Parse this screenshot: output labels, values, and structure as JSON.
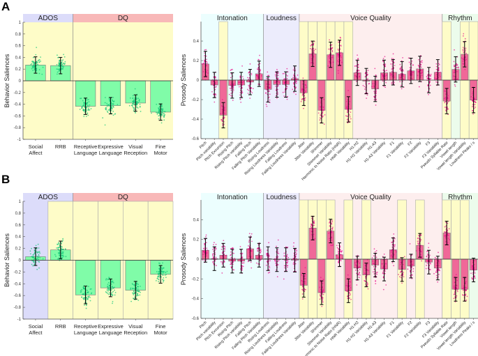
{
  "panel_labels": [
    "A",
    "B"
  ],
  "colors": {
    "behavior_bar": "#80fca8",
    "behavior_points": "#10c878",
    "prosody_bar": "#f06898",
    "prosody_points": "#e8108a",
    "highlight": "#fefcc8",
    "ados": "#dcdcfa",
    "dq": "#f8b8b8",
    "intonation": "#ecfefe",
    "loudness": "#ececfc",
    "voice_quality": "#fdeeee",
    "rhythm": "#ecfcec"
  },
  "chart_data": [
    {
      "panel": "A",
      "type": "bar",
      "ylabel": "Behavior Saliences",
      "ylim": [
        -1,
        1
      ],
      "yticks": [
        "1",
        "0.8",
        "0.6",
        "0.4",
        "0.2",
        "0",
        "-0.2",
        "-0.4",
        "-0.6",
        "-0.8",
        "-1"
      ],
      "categories": [
        [
          "Social",
          "Affect"
        ],
        [
          "RRB"
        ],
        [
          "Receptive",
          "Language"
        ],
        [
          "Expressive",
          "Language"
        ],
        [
          "Visual",
          "Reception"
        ],
        [
          "Fine",
          "Motor"
        ]
      ],
      "values": [
        0.27,
        0.26,
        -0.435,
        -0.425,
        -0.38,
        -0.535
      ],
      "error_halfwidth": 0.14,
      "groups": [
        {
          "name": "ADOS",
          "start": 0,
          "end": 1,
          "color": "#dcdcfa",
          "bg": "#fefcc8"
        },
        {
          "name": "DQ",
          "start": 2,
          "end": 5,
          "color": "#f8b8b8",
          "bg": "#fefcc8"
        }
      ],
      "highlighted": [
        0,
        1,
        2,
        3,
        4,
        5
      ]
    },
    {
      "panel": "A",
      "type": "bar",
      "ylabel": "Prosody Saliences",
      "ylim": [
        -0.6,
        0.6
      ],
      "yticks": [
        "0.4",
        "0.2",
        "0",
        "-0.2",
        "-0.4",
        "-0.6"
      ],
      "categories": [
        "Pitch",
        "Pitch variability",
        "Pitch Excursion",
        "Rising Pitch",
        "Rising Pitch variability",
        "Falling Pitch",
        "Falling Pitch Variability",
        "Rising Loudness",
        "Rising Loudness Variability",
        "Falling Loudness",
        "Falling Loudness Variability",
        "Jitter",
        "Jitter Variability",
        "Shimmer",
        "Shimmer Variability",
        "Harmonic to Noise Ratio (HNR)",
        "HNR Variability",
        "H1-H2",
        "H1-H2 Variability",
        "H1-A3",
        "H1-A3 Variability",
        "F1",
        "F1 Variability",
        "F2",
        "F2 Variability",
        "F3",
        "F3 Variability",
        "Pseudo Syllable Rate",
        "Vowel length",
        "Vowel length Variability",
        "Loudness Peaks / s"
      ],
      "values": [
        0.165,
        -0.05,
        -0.36,
        -0.055,
        -0.05,
        -0.02,
        0.065,
        -0.095,
        -0.045,
        -0.045,
        0.015,
        -0.13,
        0.27,
        -0.31,
        0.26,
        0.28,
        -0.3,
        0.075,
        -0.01,
        -0.09,
        0.075,
        0.08,
        0.06,
        0.095,
        0.115,
        0.0,
        0.08,
        -0.215,
        0.11,
        0.265,
        -0.205
      ],
      "error_halfwidth": 0.13,
      "groups": [
        {
          "name": "Intonation",
          "start": 0,
          "end": 6,
          "color": "#ecfefe",
          "bg": "#ecfefe"
        },
        {
          "name": "Loudness",
          "start": 7,
          "end": 10,
          "color": "#ececfc",
          "bg": "#ececfc"
        },
        {
          "name": "Voice Quality",
          "start": 11,
          "end": 26,
          "color": "#fdeeee",
          "bg": "#fdeeee"
        },
        {
          "name": "Rhythm",
          "start": 27,
          "end": 30,
          "color": "#ecfcec",
          "bg": "#ecfcec"
        }
      ],
      "highlighted": [
        2,
        11,
        12,
        13,
        14,
        15,
        16,
        27,
        29,
        30
      ]
    },
    {
      "panel": "B",
      "type": "bar",
      "ylabel": "Behavior Saliences",
      "ylim": [
        -1,
        1
      ],
      "yticks": [
        "1",
        "0.8",
        "0.6",
        "0.4",
        "0.2",
        "0",
        "-0.2",
        "-0.4",
        "-0.6",
        "-0.8",
        "-1"
      ],
      "categories": [
        [
          "Social",
          "Affect"
        ],
        [
          "RRB"
        ],
        [
          "Receptive",
          "Language"
        ],
        [
          "Expressive",
          "Language"
        ],
        [
          "Visual",
          "Reception"
        ],
        [
          "Fine",
          "Motor"
        ]
      ],
      "values": [
        0.06,
        0.175,
        -0.59,
        -0.47,
        -0.51,
        -0.24
      ],
      "error_halfwidth": 0.15,
      "groups": [
        {
          "name": "ADOS",
          "start": 0,
          "end": 1,
          "color": "#dcdcfa",
          "bg": "#dcdcfa"
        },
        {
          "name": "DQ",
          "start": 2,
          "end": 5,
          "color": "#f8b8b8",
          "bg": "#fefcc8"
        }
      ],
      "highlighted": [
        1,
        2,
        3,
        4,
        5
      ]
    },
    {
      "panel": "B",
      "type": "bar",
      "ylabel": "Prosody Saliences",
      "ylim": [
        -0.6,
        0.6
      ],
      "yticks": [
        "0.4",
        "0.2",
        "0",
        "-0.2",
        "-0.4",
        "-0.6"
      ],
      "categories": [
        "Pitch",
        "Pitch variability",
        "Pitch Excursion",
        "Rising Pitch",
        "Rising Pitch variability",
        "Falling Pitch",
        "Falling Pitch Variability",
        "Rising Loudness",
        "Rising Loudness Variability",
        "Falling Loudness",
        "Falling Loudness Variability",
        "Jitter",
        "Jitter Variability",
        "Shimmer",
        "Shimmer Variability",
        "Harmonic to Noise Ratio (HNR)",
        "HNR Variability",
        "H1-H2",
        "H1-H2 Variability",
        "H1-A3",
        "H1-A3 Variability",
        "F1",
        "F1 Variability",
        "F2",
        "F2 Variability",
        "F3",
        "F3 Variability",
        "Pseudo Syllable Rate",
        "Vowel length",
        "Vowel length Variability",
        "Loudness Peaks / s"
      ],
      "values": [
        0.09,
        0.005,
        0.04,
        -0.02,
        -0.02,
        0.105,
        0.04,
        0.005,
        -0.005,
        -0.005,
        -0.01,
        -0.265,
        0.315,
        -0.34,
        0.285,
        0.045,
        -0.32,
        -0.09,
        -0.16,
        -0.06,
        -0.1,
        0.095,
        -0.105,
        -0.07,
        0.14,
        -0.03,
        -0.09,
        0.265,
        -0.305,
        -0.305,
        -0.11
      ],
      "error_halfwidth": 0.12,
      "groups": [
        {
          "name": "Intonation",
          "start": 0,
          "end": 6,
          "color": "#ecfefe",
          "bg": "#ecfefe"
        },
        {
          "name": "Loudness",
          "start": 7,
          "end": 10,
          "color": "#ececfc",
          "bg": "#ececfc"
        },
        {
          "name": "Voice Quality",
          "start": 11,
          "end": 26,
          "color": "#fdeeee",
          "bg": "#fdeeee"
        },
        {
          "name": "Rhythm",
          "start": 27,
          "end": 30,
          "color": "#ecfcec",
          "bg": "#ecfcec"
        }
      ],
      "highlighted": [
        11,
        12,
        13,
        14,
        16,
        18,
        22,
        24,
        27,
        28,
        29
      ]
    }
  ]
}
